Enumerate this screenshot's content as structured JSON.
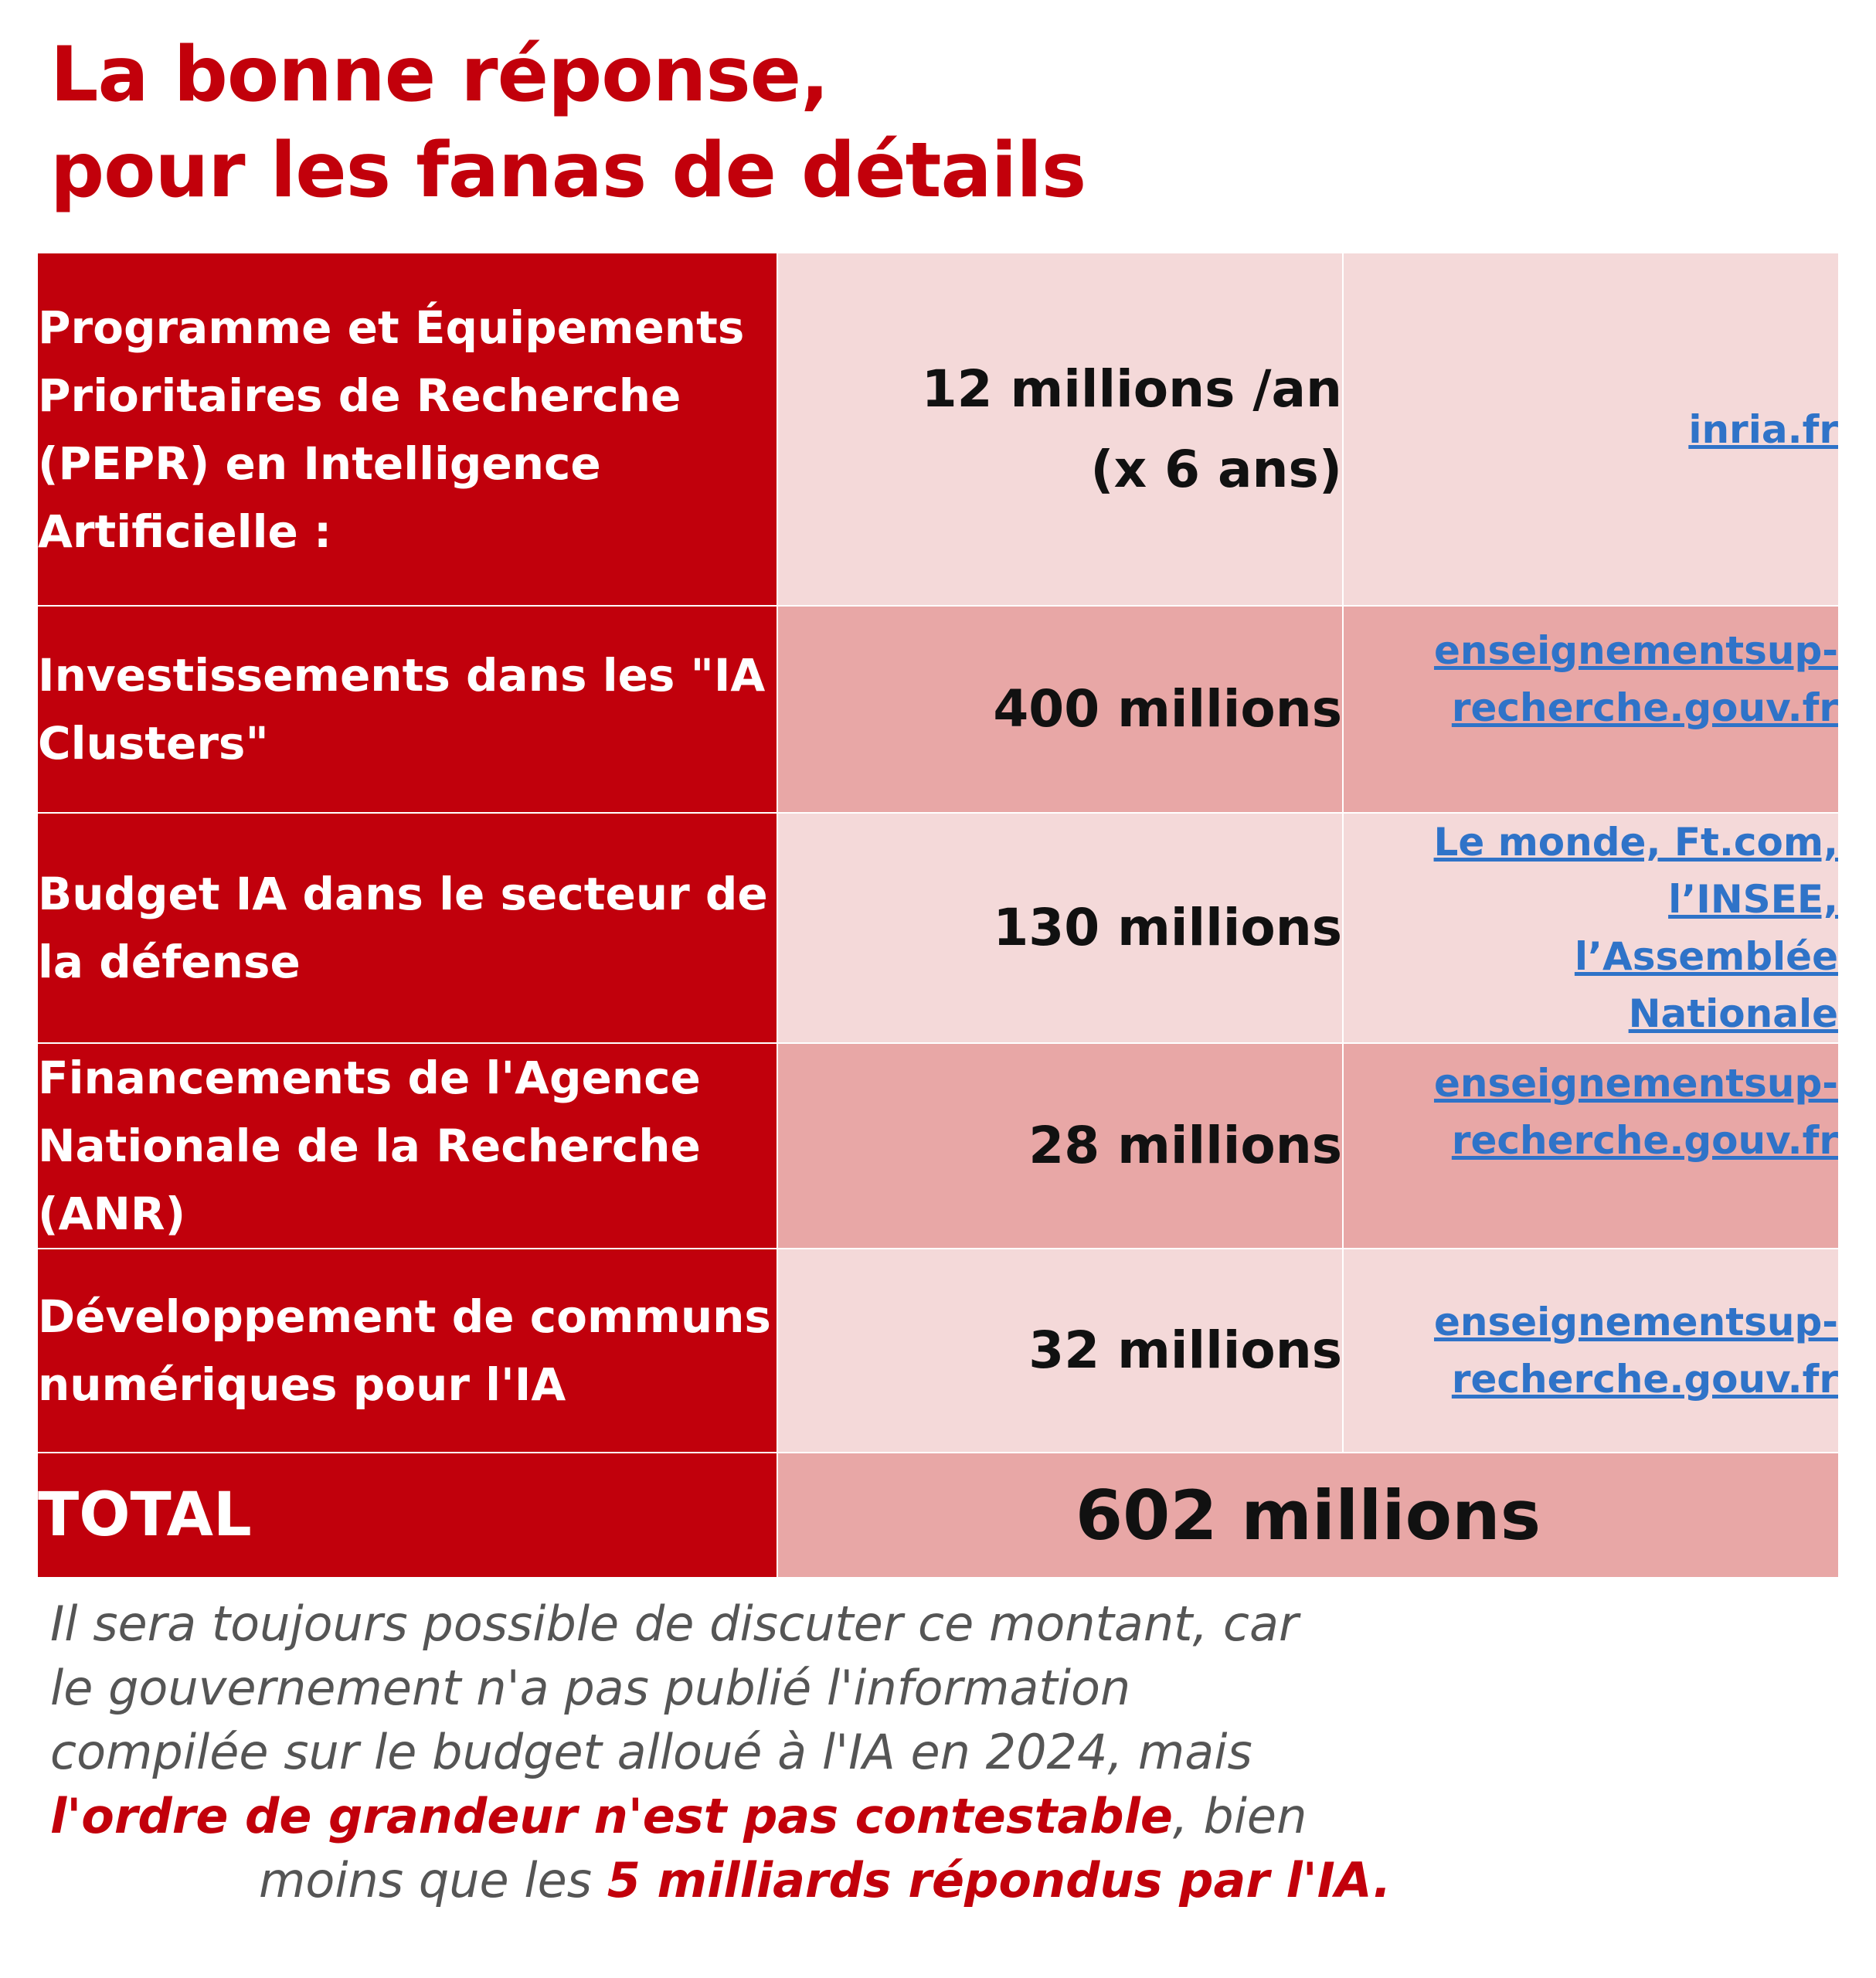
{
  "title": {
    "line1": "La bonne réponse,",
    "line2": "pour les fanas de détails"
  },
  "table": {
    "rows": [
      {
        "label": "Programme et Équipements Prioritaires de Recherche (PEPR) en Intelligence Artificielle :",
        "amount_line1": "12 millions /an",
        "amount_line2": "(x 6 ans)",
        "source": "inria.fr"
      },
      {
        "label": "Investissements dans les \"IA Clusters\"",
        "amount_line1": "400 millions",
        "source_line1": "enseignementsup-",
        "source_line2": "recherche.gouv.fr"
      },
      {
        "label": "Budget IA dans le secteur de la défense",
        "amount_line1": "130 millions",
        "source_line1": "Le monde, Ft.com,",
        "source_line2": "l’INSEE,",
        "source_line3": "l’Assemblée",
        "source_line4": "Nationale"
      },
      {
        "label": "Financements de l'Agence Nationale de la Recherche (ANR)",
        "amount_line1": "28 millions",
        "source_line1": "enseignementsup-",
        "source_line2": "recherche.gouv.fr"
      },
      {
        "label": "Développement de communs numériques pour l'IA",
        "amount_line1": "32 millions",
        "source_line1": "enseignementsup-",
        "source_line2": "recherche.gouv.fr"
      }
    ],
    "total_label": "TOTAL",
    "total_value": "602 millions"
  },
  "note": {
    "line1": "Il sera toujours possible de discuter ce montant, car",
    "line2": "le gouvernement n'a pas publié l'information",
    "line3": "compilée sur le budget alloué à l'IA en 2024, mais",
    "line4_emph": "l'ordre de grandeur n'est pas contestable",
    "line4_rest": ", bien",
    "line5_start": "moins que les ",
    "line5_emph": "5 milliards répondus par l'IA."
  },
  "colors": {
    "accent_red": "#c1000c",
    "row_light": "#f4d9d9",
    "row_dark": "#e8a7a6",
    "link_blue": "#2f73c8",
    "note_gray": "#555555"
  }
}
